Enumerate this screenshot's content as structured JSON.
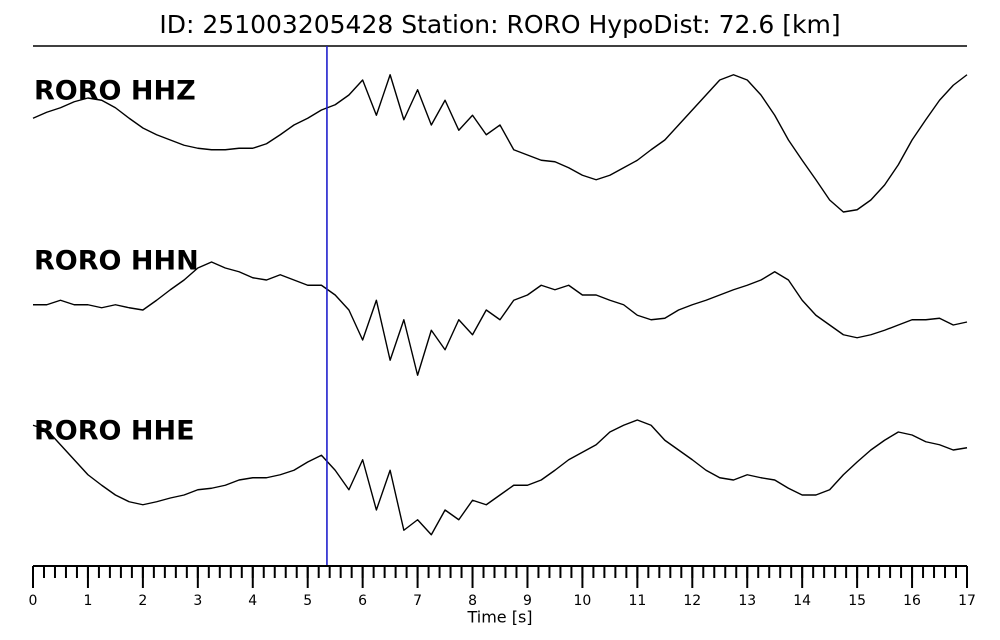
{
  "chart_data": {
    "type": "line",
    "title": "ID: 251003205428   Station: RORO   HypoDist:    72.6 [km]",
    "x_label": "Time [s]",
    "xlim": [
      0,
      17
    ],
    "xticks": [
      0,
      1,
      2,
      3,
      4,
      5,
      6,
      7,
      8,
      9,
      10,
      11,
      12,
      13,
      14,
      15,
      16,
      17
    ],
    "xminor_step": 0.2,
    "label_color": "#4c9a0a",
    "vline": {
      "x": 5.35,
      "color": "#1f1fcc"
    },
    "x": [
      0,
      0.25,
      0.5,
      0.75,
      1,
      1.25,
      1.5,
      1.75,
      2,
      2.25,
      2.5,
      2.75,
      3,
      3.25,
      3.5,
      3.75,
      4,
      4.25,
      4.5,
      4.75,
      5,
      5.25,
      5.5,
      5.75,
      6,
      6.25,
      6.5,
      6.75,
      7,
      7.25,
      7.5,
      7.75,
      8,
      8.25,
      8.5,
      8.75,
      9,
      9.25,
      9.5,
      9.75,
      10,
      10.25,
      10.5,
      10.75,
      11,
      11.25,
      11.5,
      11.75,
      12,
      12.25,
      12.5,
      12.75,
      13,
      13.25,
      13.5,
      13.75,
      14,
      14.25,
      14.5,
      14.75,
      15,
      15.25,
      15.5,
      15.75,
      16,
      16.25,
      16.5,
      16.75,
      17
    ],
    "series": [
      {
        "name": "RORO HHZ",
        "color": "#000000",
        "ylim": [
          -1,
          1
        ],
        "values": [
          0.29,
          0.37,
          0.43,
          0.51,
          0.56,
          0.53,
          0.43,
          0.29,
          0.16,
          0.07,
          0,
          -0.07,
          -0.11,
          -0.13,
          -0.13,
          -0.11,
          -0.11,
          -0.05,
          0.07,
          0.2,
          0.29,
          0.4,
          0.47,
          0.6,
          0.8,
          0.33,
          0.87,
          0.27,
          0.67,
          0.2,
          0.53,
          0.13,
          0.33,
          0.07,
          0.2,
          -0.13,
          -0.2,
          -0.27,
          -0.29,
          -0.37,
          -0.47,
          -0.53,
          -0.47,
          -0.37,
          -0.27,
          -0.13,
          0,
          0.2,
          0.4,
          0.6,
          0.8,
          0.87,
          0.8,
          0.6,
          0.33,
          0,
          -0.27,
          -0.53,
          -0.8,
          -0.96,
          -0.93,
          -0.8,
          -0.6,
          -0.33,
          0,
          0.27,
          0.53,
          0.73,
          0.87
        ]
      },
      {
        "name": "RORO HHN",
        "color": "#000000",
        "ylim": [
          -1,
          1
        ],
        "values": [
          0.07,
          0.07,
          0.13,
          0.07,
          0.07,
          0.03,
          0.07,
          0.03,
          0,
          0.13,
          0.27,
          0.4,
          0.56,
          0.64,
          0.56,
          0.51,
          0.43,
          0.4,
          0.47,
          0.4,
          0.33,
          0.33,
          0.2,
          0,
          -0.4,
          0.13,
          -0.67,
          -0.13,
          -0.87,
          -0.27,
          -0.53,
          -0.13,
          -0.33,
          0,
          -0.13,
          0.13,
          0.2,
          0.33,
          0.27,
          0.33,
          0.2,
          0.2,
          0.13,
          0.07,
          -0.07,
          -0.13,
          -0.11,
          0,
          0.07,
          0.13,
          0.2,
          0.27,
          0.33,
          0.4,
          0.51,
          0.4,
          0.13,
          -0.07,
          -0.2,
          -0.33,
          -0.37,
          -0.33,
          -0.27,
          -0.2,
          -0.13,
          -0.13,
          -0.11,
          -0.2,
          -0.16
        ]
      },
      {
        "name": "RORO HHE",
        "color": "#000000",
        "ylim": [
          -1,
          1
        ],
        "values": [
          0.73,
          0.67,
          0.47,
          0.27,
          0.07,
          -0.07,
          -0.2,
          -0.29,
          -0.33,
          -0.29,
          -0.24,
          -0.2,
          -0.13,
          -0.11,
          -0.07,
          0,
          0.03,
          0.03,
          0.07,
          0.13,
          0.24,
          0.33,
          0.13,
          -0.13,
          0.27,
          -0.4,
          0.13,
          -0.67,
          -0.53,
          -0.73,
          -0.4,
          -0.53,
          -0.27,
          -0.33,
          -0.2,
          -0.07,
          -0.07,
          0,
          0.13,
          0.27,
          0.37,
          0.47,
          0.64,
          0.73,
          0.8,
          0.73,
          0.53,
          0.4,
          0.27,
          0.13,
          0.03,
          0,
          0.07,
          0.03,
          0,
          -0.11,
          -0.2,
          -0.2,
          -0.13,
          0.07,
          0.24,
          0.4,
          0.53,
          0.64,
          0.6,
          0.51,
          0.47,
          0.4,
          0.43
        ]
      }
    ]
  }
}
